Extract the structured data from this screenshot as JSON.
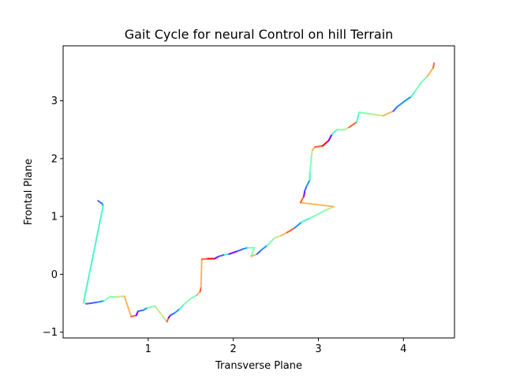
{
  "chart_data": {
    "type": "line",
    "title": "Gait Cycle for neural Control on hill Terrain",
    "xlabel": "Transverse Plane",
    "ylabel": "Frontal Plane",
    "xlim": [
      0.0,
      4.6
    ],
    "ylim": [
      -1.1,
      3.95
    ],
    "x_ticks": [
      1,
      2,
      3,
      4
    ],
    "y_ticks": [
      -1,
      0,
      1,
      2,
      3
    ],
    "x_tick_labels": [
      "1",
      "2",
      "3",
      "4"
    ],
    "y_tick_labels": [
      "−1",
      "0",
      "1",
      "2",
      "3"
    ],
    "grid": false,
    "legend": "none",
    "colormap": "rainbow",
    "palette": [
      "#8000ff",
      "#3f64f8",
      "#1996f3",
      "#4df3ce",
      "#80ffb4",
      "#c0eb8d",
      "#ffb360",
      "#ff6030",
      "#ff0000"
    ],
    "points": [
      [
        0.41,
        1.27,
        0.1
      ],
      [
        0.46,
        1.22,
        0.15
      ],
      [
        0.47,
        1.18,
        0.2
      ],
      [
        0.24,
        -0.49,
        0.38
      ],
      [
        0.27,
        -0.51,
        0.5
      ],
      [
        0.33,
        -0.5,
        0.1
      ],
      [
        0.41,
        -0.48,
        0.15
      ],
      [
        0.48,
        -0.46,
        0.2
      ],
      [
        0.55,
        -0.39,
        0.45
      ],
      [
        0.62,
        -0.39,
        0.55
      ],
      [
        0.72,
        -0.38,
        0.65
      ],
      [
        0.8,
        -0.73,
        0.8
      ],
      [
        0.86,
        -0.71,
        0.9
      ],
      [
        0.88,
        -0.64,
        0.05
      ],
      [
        0.94,
        -0.62,
        0.15
      ],
      [
        0.99,
        -0.58,
        0.25
      ],
      [
        1.08,
        -0.55,
        0.45
      ],
      [
        1.22,
        -0.82,
        0.6
      ],
      [
        1.24,
        -0.75,
        0.85
      ],
      [
        1.26,
        -0.71,
        0.05
      ],
      [
        1.31,
        -0.67,
        0.15
      ],
      [
        1.37,
        -0.6,
        0.25
      ],
      [
        1.42,
        -0.52,
        0.35
      ],
      [
        1.5,
        -0.42,
        0.45
      ],
      [
        1.57,
        -0.36,
        0.55
      ],
      [
        1.61,
        -0.3,
        0.7
      ],
      [
        1.62,
        -0.22,
        0.85
      ],
      [
        1.63,
        0.26,
        0.8
      ],
      [
        1.7,
        0.27,
        0.85
      ],
      [
        1.78,
        0.27,
        0.95
      ],
      [
        1.83,
        0.31,
        0.05
      ],
      [
        1.9,
        0.34,
        0.15
      ],
      [
        1.95,
        0.35,
        0.35
      ],
      [
        2.05,
        0.4,
        0.05
      ],
      [
        2.12,
        0.44,
        0.15
      ],
      [
        2.17,
        0.46,
        0.25
      ],
      [
        2.25,
        0.46,
        0.45
      ],
      [
        2.21,
        0.31,
        0.55
      ],
      [
        2.28,
        0.35,
        0.8
      ],
      [
        2.33,
        0.42,
        0.1
      ],
      [
        2.4,
        0.5,
        0.3
      ],
      [
        2.48,
        0.62,
        0.45
      ],
      [
        2.56,
        0.67,
        0.6
      ],
      [
        2.63,
        0.72,
        0.75
      ],
      [
        2.72,
        0.8,
        0.85
      ],
      [
        2.8,
        0.9,
        0.25
      ],
      [
        2.9,
        0.97,
        0.35
      ],
      [
        2.97,
        1.02,
        0.45
      ],
      [
        3.1,
        1.12,
        0.55
      ],
      [
        3.18,
        1.17,
        0.65
      ],
      [
        2.79,
        1.24,
        0.7
      ],
      [
        2.83,
        1.35,
        0.85
      ],
      [
        2.84,
        1.44,
        0.05
      ],
      [
        2.86,
        1.52,
        0.15
      ],
      [
        2.9,
        1.63,
        0.25
      ],
      [
        2.9,
        1.77,
        0.35
      ],
      [
        2.91,
        1.9,
        0.45
      ],
      [
        2.92,
        2.06,
        0.5
      ],
      [
        2.93,
        2.15,
        0.6
      ],
      [
        2.96,
        2.2,
        0.75
      ],
      [
        3.05,
        2.22,
        0.85
      ],
      [
        3.12,
        2.31,
        0.95
      ],
      [
        3.16,
        2.42,
        0.05
      ],
      [
        3.22,
        2.5,
        0.35
      ],
      [
        3.31,
        2.5,
        0.5
      ],
      [
        3.36,
        2.54,
        0.65
      ],
      [
        3.45,
        2.63,
        0.85
      ],
      [
        3.48,
        2.8,
        0.4
      ],
      [
        3.62,
        2.77,
        0.55
      ],
      [
        3.76,
        2.74,
        0.6
      ],
      [
        3.88,
        2.82,
        0.75
      ],
      [
        3.93,
        2.9,
        0.1
      ],
      [
        4.02,
        3.0,
        0.2
      ],
      [
        4.09,
        3.07,
        0.3
      ],
      [
        4.14,
        3.17,
        0.35
      ],
      [
        4.2,
        3.3,
        0.45
      ],
      [
        4.28,
        3.42,
        0.55
      ],
      [
        4.35,
        3.57,
        0.7
      ],
      [
        4.36,
        3.65,
        0.85
      ]
    ]
  }
}
